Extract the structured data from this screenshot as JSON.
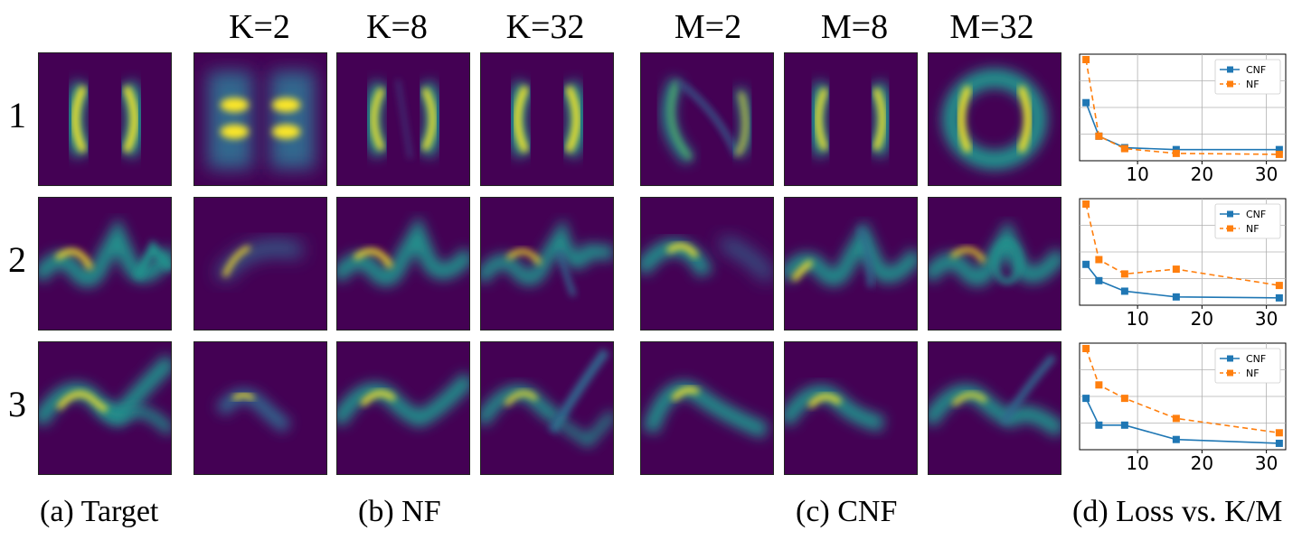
{
  "column_headers": [
    "K=2",
    "K=8",
    "K=32",
    "M=2",
    "M=8",
    "M=32"
  ],
  "row_labels": [
    "1",
    "2",
    "3"
  ],
  "captions": {
    "target": "(a) Target",
    "nf": "(b) NF",
    "cnf": "(c) CNF",
    "loss": "(d) Loss vs. K/M"
  },
  "colors": {
    "background": "#440154",
    "density_high": "#fde725",
    "density_mid": "#21918c",
    "cnf_series": "#1f77b4",
    "nf_series": "#ff7f0e"
  },
  "chart_data": [
    {
      "type": "line",
      "x": [
        2,
        4,
        8,
        16,
        32
      ],
      "xticks": [
        10,
        20,
        30
      ],
      "xlim": [
        1,
        33
      ],
      "legend_position": "top-right",
      "grid": true,
      "series": [
        {
          "name": "CNF",
          "values": [
            0.55,
            0.2,
            0.08,
            0.06,
            0.06
          ]
        },
        {
          "name": "NF",
          "values": [
            1.0,
            0.2,
            0.07,
            0.02,
            0.01
          ]
        }
      ]
    },
    {
      "type": "line",
      "x": [
        2,
        4,
        8,
        16,
        32
      ],
      "xticks": [
        10,
        20,
        30
      ],
      "xlim": [
        1,
        33
      ],
      "legend_position": "top-right",
      "grid": true,
      "series": [
        {
          "name": "CNF",
          "values": [
            0.37,
            0.2,
            0.09,
            0.03,
            0.02
          ]
        },
        {
          "name": "NF",
          "values": [
            1.0,
            0.42,
            0.27,
            0.32,
            0.15
          ]
        }
      ]
    },
    {
      "type": "line",
      "x": [
        2,
        4,
        8,
        16,
        32
      ],
      "xticks": [
        10,
        20,
        30
      ],
      "xlim": [
        1,
        33
      ],
      "legend_position": "top-right",
      "grid": true,
      "series": [
        {
          "name": "CNF",
          "values": [
            0.48,
            0.2,
            0.2,
            0.05,
            0.01
          ]
        },
        {
          "name": "NF",
          "values": [
            1.0,
            0.62,
            0.48,
            0.27,
            0.12
          ]
        }
      ]
    }
  ]
}
